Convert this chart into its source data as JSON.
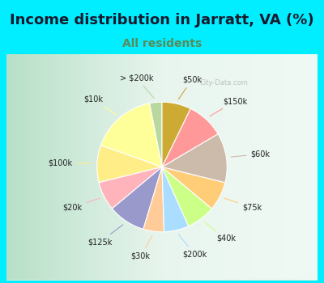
{
  "title": "Income distribution in Jarratt, VA (%)",
  "subtitle": "All residents",
  "title_color": "#1a1a2e",
  "subtitle_color": "#5a8a5a",
  "background_color": "#00eeff",
  "watermark": "City-Data.com",
  "labels": [
    "> $200k",
    "$10k",
    "$100k",
    "$20k",
    "$125k",
    "$30k",
    "$200k",
    "$40k",
    "$75k",
    "$60k",
    "$150k",
    "$50k"
  ],
  "sizes": [
    3,
    16,
    9,
    7,
    9,
    5,
    6,
    7,
    7,
    12,
    9,
    7
  ],
  "colors": [
    "#b8d8a0",
    "#ffff99",
    "#ffee88",
    "#ffb3ba",
    "#9999cc",
    "#ffcc99",
    "#aaddff",
    "#ccff88",
    "#ffcc77",
    "#ccbbaa",
    "#ff9999",
    "#ccaa33"
  ],
  "startangle": 90,
  "label_fontsize": 7,
  "title_fontsize": 13,
  "subtitle_fontsize": 10
}
